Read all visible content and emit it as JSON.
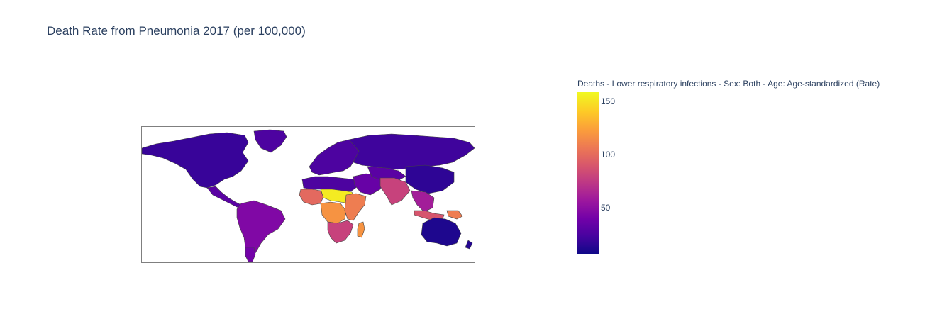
{
  "title": "Death Rate from Pneumonia 2017 (per 100,000)",
  "colorbar": {
    "title": "Deaths - Lower respiratory infections - Sex: Both - Age: Age-standardized (Rate)",
    "colorscale": [
      "#0d0887",
      "#46039f",
      "#7201a8",
      "#9c179e",
      "#bd3786",
      "#d8576b",
      "#ed7953",
      "#fb9f3a",
      "#fdca26",
      "#f0f921"
    ],
    "range": [
      5,
      160
    ],
    "ticks": [
      "50",
      "100",
      "150"
    ]
  },
  "chart_data": {
    "type": "choropleth",
    "projection": "equirectangular",
    "title": "Death Rate from Pneumonia 2017 (per 100,000)",
    "legend_title": "Deaths - Lower respiratory infections - Sex: Both - Age: Age-standardized (Rate)",
    "value_range": [
      5,
      160
    ],
    "regions": [
      {
        "name": "North America",
        "value": 18
      },
      {
        "name": "Greenland",
        "value": 25
      },
      {
        "name": "Central America",
        "value": 30
      },
      {
        "name": "South America",
        "value": 45
      },
      {
        "name": "Southern South America",
        "value": 40
      },
      {
        "name": "Europe",
        "value": 25
      },
      {
        "name": "Russia",
        "value": 20
      },
      {
        "name": "North Africa",
        "value": 25
      },
      {
        "name": "West Africa",
        "value": 100
      },
      {
        "name": "Sahel",
        "value": 155
      },
      {
        "name": "Central Africa",
        "value": 120
      },
      {
        "name": "East Africa",
        "value": 110
      },
      {
        "name": "Southern Africa",
        "value": 80
      },
      {
        "name": "Madagascar",
        "value": 120
      },
      {
        "name": "Middle East",
        "value": 35
      },
      {
        "name": "Central Asia",
        "value": 30
      },
      {
        "name": "South Asia",
        "value": 80
      },
      {
        "name": "China",
        "value": 15
      },
      {
        "name": "Southeast Asia",
        "value": 60
      },
      {
        "name": "Indonesia",
        "value": 90
      },
      {
        "name": "Papua New Guinea",
        "value": 110
      },
      {
        "name": "Australia",
        "value": 10
      },
      {
        "name": "New Zealand",
        "value": 12
      }
    ]
  }
}
